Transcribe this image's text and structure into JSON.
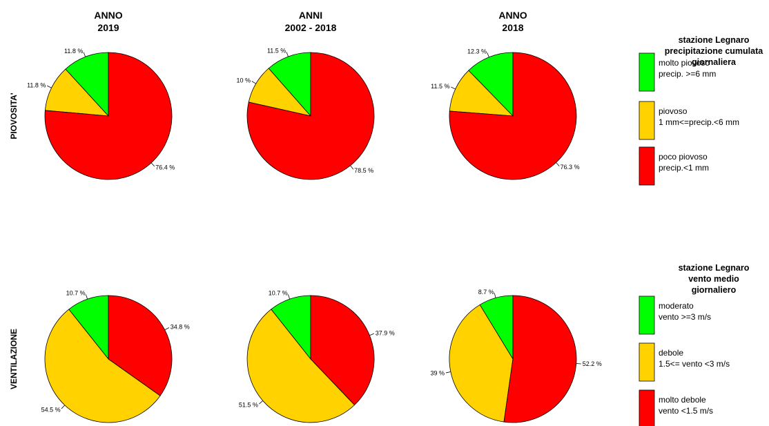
{
  "row_labels": [
    "PIOVOSITA'",
    "VENTILAZIONE"
  ],
  "column_titles": [
    [
      "ANNO",
      "2019"
    ],
    [
      "ANNI",
      "2002 - 2018"
    ],
    [
      "ANNO",
      "2018"
    ]
  ],
  "legends": [
    {
      "title_lines": [
        "stazione  Legnaro",
        "precipitazione cumulata",
        "giornaliera"
      ],
      "items": [
        {
          "lines": [
            "molto piovoso",
            "precip. >=6 mm"
          ],
          "color": "#00FF00"
        },
        {
          "lines": [
            "piovoso",
            "1 mm<=precip.<6 mm"
          ],
          "color": "#FFD200"
        },
        {
          "lines": [
            "poco piovoso",
            "precip.<1 mm"
          ],
          "color": "#FF0000"
        }
      ]
    },
    {
      "title_lines": [
        "stazione  Legnaro",
        "vento medio",
        "giornaliero"
      ],
      "items": [
        {
          "lines": [
            "moderato",
            "vento >=3 m/s"
          ],
          "color": "#00FF00"
        },
        {
          "lines": [
            "debole",
            "1.5<= vento <3 m/s"
          ],
          "color": "#FFD200"
        },
        {
          "lines": [
            "molto debole",
            "vento <1.5 m/s"
          ],
          "color": "#FF0000"
        }
      ]
    }
  ],
  "chart_data": [
    {
      "type": "pie",
      "row": 0,
      "col": 0,
      "categories": [
        "molto piovoso",
        "piovoso",
        "poco piovoso"
      ],
      "values": [
        11.8,
        11.8,
        76.4
      ],
      "labels": [
        "11.8 %",
        "11.8 %",
        "76.4 %"
      ],
      "colors": [
        "#00FF00",
        "#FFD200",
        "#FF0000"
      ]
    },
    {
      "type": "pie",
      "row": 0,
      "col": 1,
      "categories": [
        "molto piovoso",
        "piovoso",
        "poco piovoso"
      ],
      "values": [
        11.5,
        10,
        78.5
      ],
      "labels": [
        "11.5 %",
        "10 %",
        "78.5 %"
      ],
      "colors": [
        "#00FF00",
        "#FFD200",
        "#FF0000"
      ]
    },
    {
      "type": "pie",
      "row": 0,
      "col": 2,
      "categories": [
        "molto piovoso",
        "piovoso",
        "poco piovoso"
      ],
      "values": [
        12.3,
        11.5,
        76.3
      ],
      "labels": [
        "12.3 %",
        "11.5 %",
        "76.3 %"
      ],
      "colors": [
        "#00FF00",
        "#FFD200",
        "#FF0000"
      ]
    },
    {
      "type": "pie",
      "row": 1,
      "col": 0,
      "categories": [
        "moderato",
        "debole",
        "molto debole"
      ],
      "values": [
        10.7,
        54.5,
        34.8
      ],
      "labels": [
        "10.7 %",
        "54.5 %",
        "34.8 %"
      ],
      "colors": [
        "#00FF00",
        "#FFD200",
        "#FF0000"
      ]
    },
    {
      "type": "pie",
      "row": 1,
      "col": 1,
      "categories": [
        "moderato",
        "debole",
        "molto debole"
      ],
      "values": [
        10.7,
        51.5,
        37.9
      ],
      "labels": [
        "10.7 %",
        "51.5 %",
        "37.9 %"
      ],
      "colors": [
        "#00FF00",
        "#FFD200",
        "#FF0000"
      ]
    },
    {
      "type": "pie",
      "row": 1,
      "col": 2,
      "categories": [
        "moderato",
        "debole",
        "molto debole"
      ],
      "values": [
        8.7,
        39,
        52.2
      ],
      "labels": [
        "8.7 %",
        "39 %",
        "52.2 %"
      ],
      "colors": [
        "#00FF00",
        "#FFD200",
        "#FF0000"
      ]
    }
  ]
}
